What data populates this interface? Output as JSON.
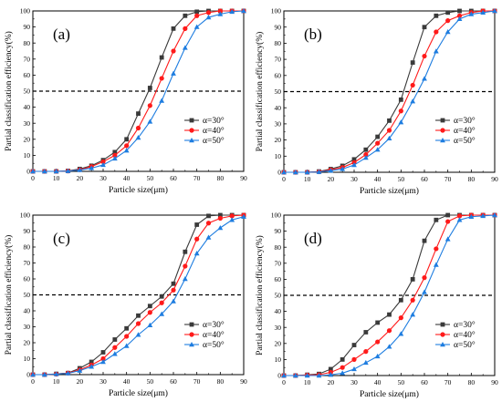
{
  "chart_data": [
    {
      "type": "line",
      "panel_label": "(a)",
      "xlabel": "Particle size(μm)",
      "ylabel": "Partial classification efficiency(%)",
      "xlim": [
        0,
        90
      ],
      "ylim": [
        0,
        100
      ],
      "xticks": [
        0,
        10,
        20,
        30,
        40,
        50,
        60,
        70,
        80,
        90
      ],
      "yticks": [
        0,
        10,
        20,
        30,
        40,
        50,
        60,
        70,
        80,
        90,
        100
      ],
      "reference_line_y": 50,
      "legend_position": "right-middle",
      "x": [
        0,
        5,
        10,
        15,
        20,
        25,
        30,
        35,
        40,
        45,
        50,
        55,
        60,
        65,
        70,
        75,
        80,
        85,
        90
      ],
      "series": [
        {
          "name": "α=30°",
          "color": "#3a3a3a",
          "marker": "square",
          "values": [
            0,
            0,
            0,
            0.3,
            1.5,
            3.5,
            7,
            12,
            20,
            36,
            52,
            71,
            89,
            97,
            99.5,
            100,
            100,
            100,
            100
          ]
        },
        {
          "name": "α=40°",
          "color": "#ff1a1a",
          "marker": "circle",
          "values": [
            0,
            0,
            0,
            0.2,
            1,
            3,
            6,
            10,
            16,
            27,
            41,
            58,
            75,
            89,
            97,
            99,
            100,
            100,
            100
          ]
        },
        {
          "name": "α=50°",
          "color": "#1e7de0",
          "marker": "triangle",
          "values": [
            0,
            0,
            0,
            0.2,
            0.8,
            2,
            4,
            8,
            13,
            21,
            31,
            44,
            61,
            77,
            90,
            96,
            98,
            99.5,
            100
          ]
        }
      ]
    },
    {
      "type": "line",
      "panel_label": "(b)",
      "xlabel": "Particle size(μm)",
      "ylabel": "Partial classification efficiency(%)",
      "xlim": [
        0,
        90
      ],
      "ylim": [
        0,
        100
      ],
      "xticks": [
        0,
        10,
        20,
        30,
        40,
        50,
        60,
        70,
        80,
        90
      ],
      "yticks": [
        0,
        10,
        20,
        30,
        40,
        50,
        60,
        70,
        80,
        90,
        100
      ],
      "reference_line_y": 50,
      "legend_position": "right-middle",
      "x": [
        0,
        5,
        10,
        15,
        20,
        25,
        30,
        35,
        40,
        45,
        50,
        55,
        60,
        65,
        70,
        75,
        80,
        85,
        90
      ],
      "series": [
        {
          "name": "α=30°",
          "color": "#3a3a3a",
          "marker": "square",
          "values": [
            0,
            0,
            0,
            0.5,
            2,
            4,
            8,
            14,
            22,
            32,
            45,
            68,
            90,
            97,
            99,
            100,
            100,
            100,
            100
          ]
        },
        {
          "name": "α=40°",
          "color": "#ff1a1a",
          "marker": "circle",
          "values": [
            0,
            0,
            0,
            0.3,
            1.5,
            3,
            6,
            11,
            18,
            26,
            38,
            54,
            72,
            87,
            94,
            97,
            99,
            100,
            100
          ]
        },
        {
          "name": "α=50°",
          "color": "#1e7de0",
          "marker": "triangle",
          "values": [
            0,
            0,
            0,
            0.2,
            1,
            2,
            4.5,
            9,
            14,
            21,
            31,
            44,
            58,
            75,
            87,
            95,
            98,
            99,
            100
          ]
        }
      ]
    },
    {
      "type": "line",
      "panel_label": "(c)",
      "xlabel": "Particle size(μm)",
      "ylabel": "Partial classification efficiency(%)",
      "xlim": [
        0,
        90
      ],
      "ylim": [
        0,
        100
      ],
      "xticks": [
        0,
        10,
        20,
        30,
        40,
        50,
        60,
        70,
        80,
        90
      ],
      "yticks": [
        0,
        10,
        20,
        30,
        40,
        50,
        60,
        70,
        80,
        90,
        100
      ],
      "reference_line_y": 50,
      "legend_position": "right-middle",
      "x": [
        0,
        5,
        10,
        15,
        20,
        25,
        30,
        35,
        40,
        45,
        50,
        55,
        60,
        65,
        70,
        75,
        80,
        85,
        90
      ],
      "series": [
        {
          "name": "α=30°",
          "color": "#3a3a3a",
          "marker": "square",
          "values": [
            0,
            0,
            0.5,
            1,
            4,
            8,
            14,
            22,
            29,
            37,
            43,
            49,
            57,
            77,
            94,
            99.5,
            100,
            100,
            100
          ]
        },
        {
          "name": "α=40°",
          "color": "#ff1a1a",
          "marker": "circle",
          "values": [
            0,
            0,
            0.3,
            1,
            3,
            6,
            10,
            17,
            24,
            32,
            39,
            45,
            53,
            68,
            85,
            95,
            98,
            99.5,
            100
          ]
        },
        {
          "name": "α=50°",
          "color": "#1e7de0",
          "marker": "triangle",
          "values": [
            0,
            0,
            0.3,
            0.8,
            2.5,
            5,
            8,
            13,
            18,
            25,
            31,
            38,
            46,
            60,
            76,
            86,
            92,
            97,
            99
          ]
        }
      ]
    },
    {
      "type": "line",
      "panel_label": "(d)",
      "xlabel": "Particle size(μm)",
      "ylabel": "Partial classification efficiency(%)",
      "xlim": [
        0,
        90
      ],
      "ylim": [
        0,
        100
      ],
      "xticks": [
        0,
        10,
        20,
        30,
        40,
        50,
        60,
        70,
        80,
        90
      ],
      "yticks": [
        0,
        10,
        20,
        30,
        40,
        50,
        60,
        70,
        80,
        90,
        100
      ],
      "reference_line_y": 50,
      "legend_position": "right-middle",
      "x": [
        0,
        5,
        10,
        15,
        20,
        25,
        30,
        35,
        40,
        45,
        50,
        55,
        60,
        65,
        70,
        75,
        80,
        85,
        90
      ],
      "series": [
        {
          "name": "α=30°",
          "color": "#3a3a3a",
          "marker": "square",
          "values": [
            0,
            0,
            0.5,
            1,
            4,
            10,
            19,
            27,
            33,
            38,
            47,
            60,
            84,
            97,
            100,
            100,
            100,
            100,
            100
          ]
        },
        {
          "name": "α=40°",
          "color": "#ff1a1a",
          "marker": "circle",
          "values": [
            0,
            0,
            0.3,
            0.5,
            2,
            5,
            10,
            15,
            21,
            28,
            36,
            47,
            61,
            79,
            96,
            99.5,
            100,
            100,
            100
          ]
        },
        {
          "name": "α=50°",
          "color": "#1e7de0",
          "marker": "triangle",
          "values": [
            0,
            0,
            0,
            0,
            0.5,
            1.5,
            4,
            8,
            12,
            18,
            26,
            38,
            52,
            69,
            85,
            97,
            99,
            99.5,
            100
          ]
        }
      ]
    }
  ]
}
